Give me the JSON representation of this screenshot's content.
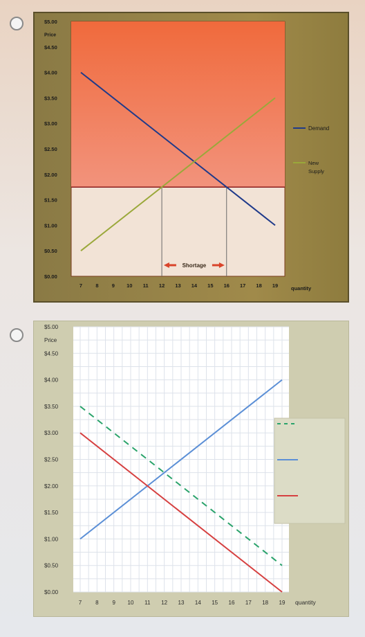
{
  "options": [
    {
      "chart_data": {
        "type": "line",
        "xlabel": "quantity",
        "ylabel": "Price",
        "x_ticks": [
          "7",
          "8",
          "9",
          "10",
          "11",
          "12",
          "13",
          "14",
          "15",
          "16",
          "17",
          "18",
          "19"
        ],
        "y_ticks": [
          "$0.00",
          "$0.50",
          "$1.00",
          "$1.50",
          "$2.00",
          "$2.50",
          "$3.00",
          "$3.50",
          "$4.00",
          "$4.50",
          "$5.00"
        ],
        "xlim": [
          7,
          19
        ],
        "ylim": [
          0,
          5
        ],
        "price_ceiling": 1.75,
        "series": [
          {
            "name": "Demand",
            "color": "#1f3a8a",
            "dashed": false,
            "points": [
              [
                7,
                4.0
              ],
              [
                19,
                1.0
              ]
            ]
          },
          {
            "name": "New Supply",
            "color": "#9aa83a",
            "dashed": false,
            "points": [
              [
                7,
                0.5
              ],
              [
                19,
                3.5
              ]
            ]
          }
        ],
        "shortage": {
          "label": "Shortage",
          "from": 12,
          "to": 16
        },
        "legend": [
          {
            "label": "Demand",
            "color": "#1f3a8a"
          },
          {
            "label": "New",
            "label2": "Supply",
            "color": "#9aa83a"
          }
        ]
      }
    },
    {
      "chart_data": {
        "type": "line",
        "xlabel": "quantity",
        "ylabel": "Price",
        "x_ticks": [
          "7",
          "8",
          "9",
          "10",
          "11",
          "12",
          "13",
          "14",
          "15",
          "16",
          "17",
          "18",
          "19"
        ],
        "y_ticks": [
          "$0.00",
          "$0.50",
          "$1.00",
          "$1.50",
          "$2.00",
          "$2.50",
          "$3.00",
          "$3.50",
          "$4.00",
          "$4.50",
          "$5.00"
        ],
        "xlim": [
          7,
          19
        ],
        "ylim": [
          0,
          5
        ],
        "grid": true,
        "series": [
          {
            "color": "#2aa36b",
            "dashed": true,
            "points": [
              [
                7,
                3.5
              ],
              [
                19,
                0.5
              ]
            ]
          },
          {
            "color": "#5b8fd6",
            "dashed": false,
            "points": [
              [
                7,
                1.0
              ],
              [
                19,
                4.0
              ]
            ]
          },
          {
            "color": "#d64040",
            "dashed": false,
            "points": [
              [
                7,
                3.0
              ],
              [
                19,
                0.0
              ]
            ]
          }
        ],
        "legend": [
          {
            "label": "",
            "color": "#2aa36b",
            "dashed": true
          },
          {
            "label": "",
            "color": "#5b8fd6",
            "dashed": false
          },
          {
            "label": "",
            "color": "#d64040",
            "dashed": false
          }
        ]
      }
    }
  ]
}
